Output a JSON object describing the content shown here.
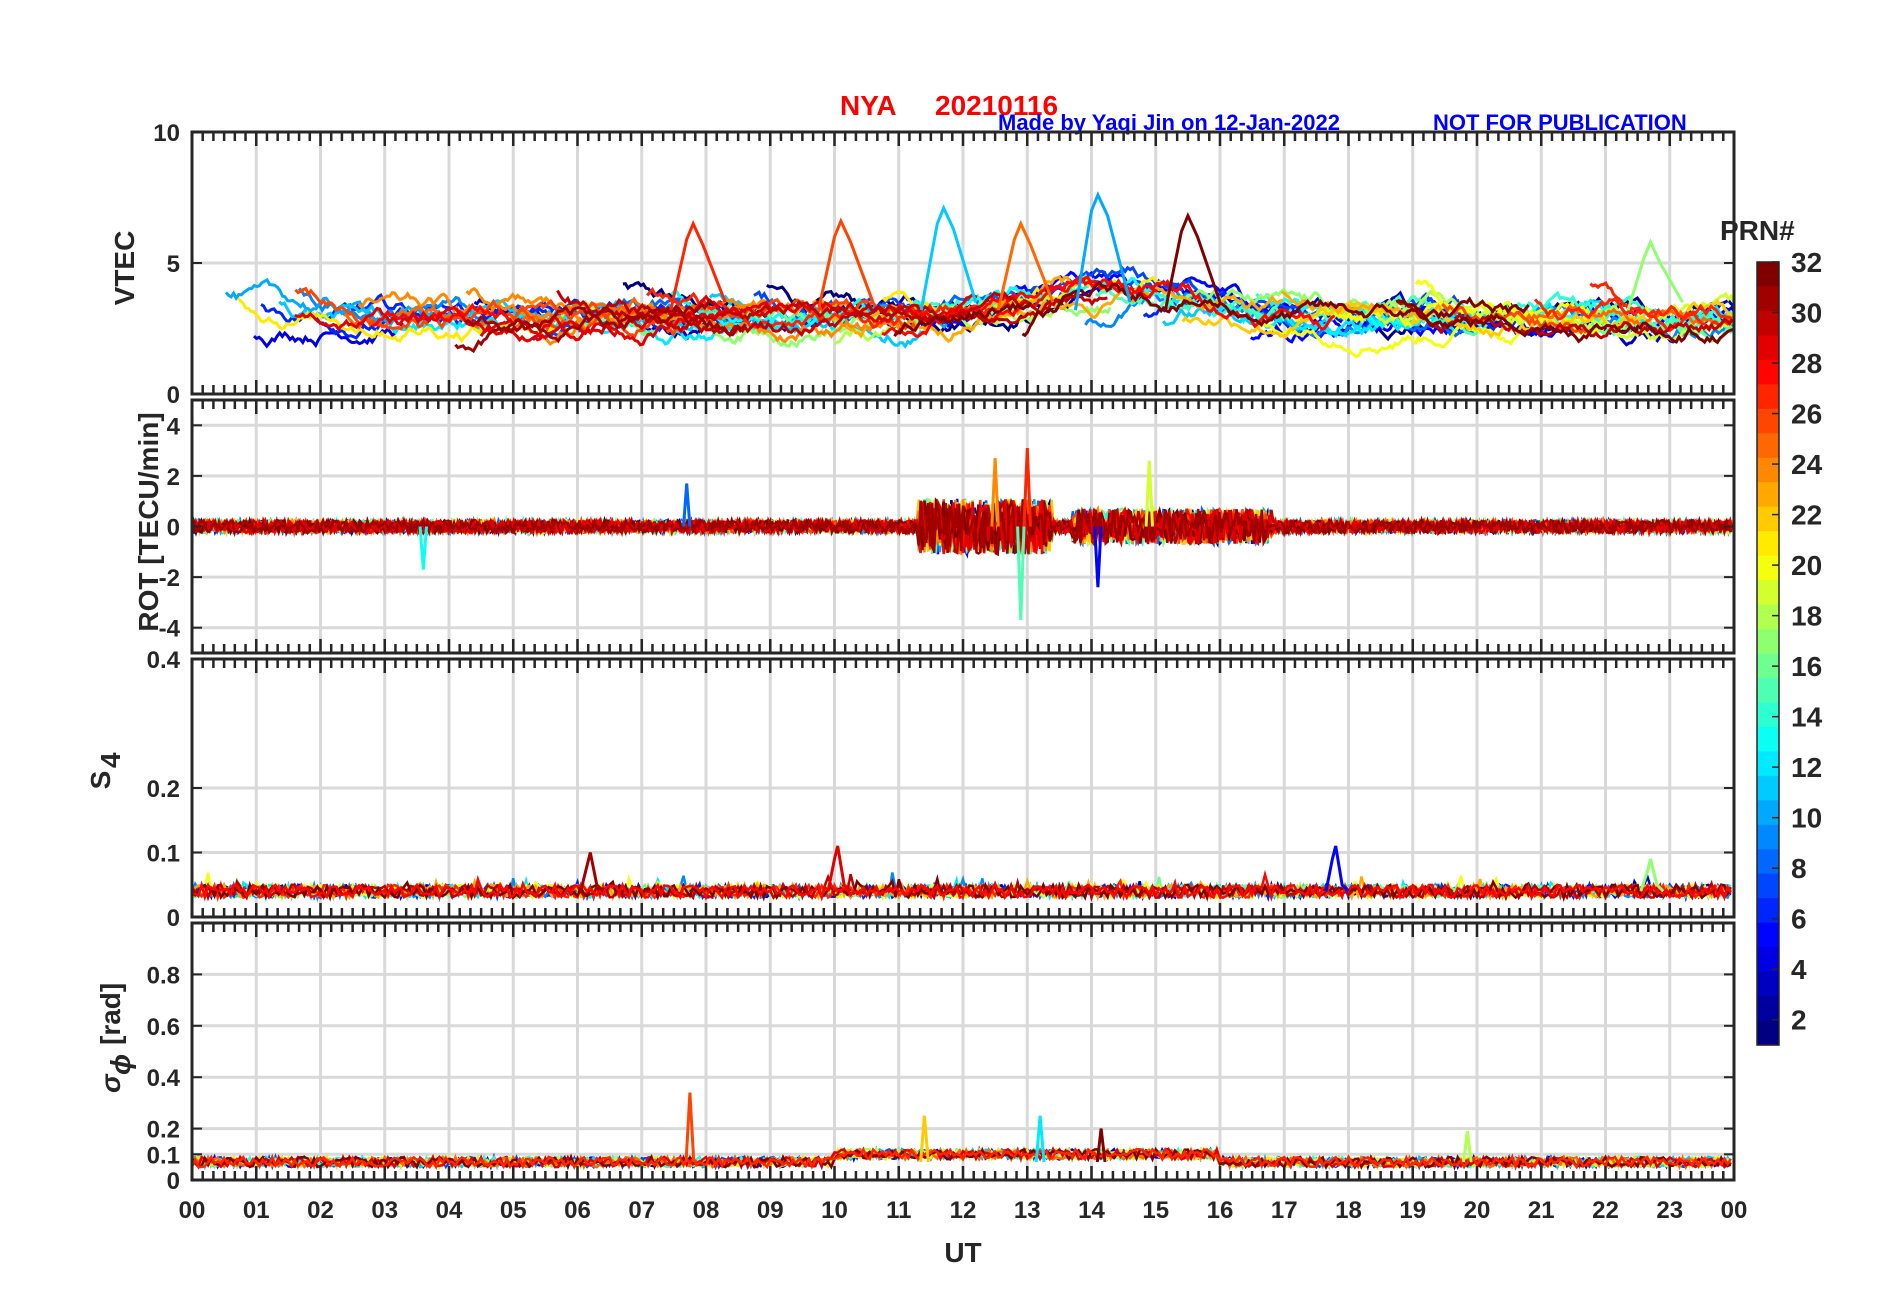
{
  "header": {
    "station": "NYA",
    "date": "20210116",
    "credit": "Made by Yaqi Jin on 12-Jan-2022",
    "notice": "NOT FOR PUBLICATION"
  },
  "colorbar": {
    "title": "PRN#",
    "ticks": [
      "2",
      "4",
      "6",
      "8",
      "10",
      "12",
      "14",
      "16",
      "18",
      "20",
      "22",
      "24",
      "26",
      "28",
      "30",
      "32"
    ],
    "range": [
      1,
      32
    ],
    "colormap": "jet"
  },
  "chart_data": [
    {
      "id": "vtec",
      "type": "line",
      "ylabel": "VTEC",
      "ylim": [
        0,
        10
      ],
      "yticks": [
        "0",
        "5",
        "10"
      ],
      "grid": true,
      "x_range_hours": [
        0,
        24
      ],
      "baseline": 2.8,
      "series_hint": "32 PRN traces, values roughly 1.5-4.5 TECU, peaks ~7 near 12-15 UT",
      "events": [
        {
          "t": 7.8,
          "v": 6.5
        },
        {
          "t": 10.1,
          "v": 6.6
        },
        {
          "t": 11.7,
          "v": 7.1
        },
        {
          "t": 12.9,
          "v": 6.5
        },
        {
          "t": 14.1,
          "v": 7.6
        },
        {
          "t": 15.5,
          "v": 6.8
        },
        {
          "t": 22.7,
          "v": 5.8
        }
      ]
    },
    {
      "id": "rot",
      "type": "line",
      "ylabel": "ROT [TECU/min]",
      "ylim": [
        -5,
        5
      ],
      "yticks": [
        "-4",
        "-2",
        "0",
        "2",
        "4"
      ],
      "grid": true,
      "x_range_hours": [
        0,
        24
      ],
      "events": [
        {
          "t": 3.6,
          "v": -1.7
        },
        {
          "t": 7.7,
          "v": 1.7
        },
        {
          "t": 12.5,
          "v": 2.7
        },
        {
          "t": 12.9,
          "v": -3.7
        },
        {
          "t": 13.0,
          "v": 3.1
        },
        {
          "t": 14.1,
          "v": -2.4
        },
        {
          "t": 14.9,
          "v": 2.6
        }
      ]
    },
    {
      "id": "s4",
      "type": "line",
      "ylabel": "S",
      "ylabel_sub": "4",
      "ylim": [
        0,
        0.4
      ],
      "yticks": [
        "0",
        "0.1",
        "0.2",
        "0.4"
      ],
      "grid": true,
      "x_range_hours": [
        0,
        24
      ],
      "baseline": 0.035,
      "events": [
        {
          "t": 6.2,
          "v": 0.1
        },
        {
          "t": 10.05,
          "v": 0.11
        },
        {
          "t": 17.8,
          "v": 0.11
        },
        {
          "t": 22.7,
          "v": 0.09
        }
      ]
    },
    {
      "id": "sigphi",
      "type": "line",
      "ylabel": "σ",
      "ylabel_sub": "ϕ",
      "ylabel_unit": "[rad]",
      "ylim": [
        0,
        1
      ],
      "yticks": [
        "0",
        "0.1",
        "0.2",
        "0.4",
        "0.6",
        "0.8"
      ],
      "grid": true,
      "x_range_hours": [
        0,
        24
      ],
      "baseline": 0.06,
      "events": [
        {
          "t": 7.75,
          "v": 0.34
        },
        {
          "t": 11.4,
          "v": 0.25
        },
        {
          "t": 13.2,
          "v": 0.25
        },
        {
          "t": 14.15,
          "v": 0.2
        },
        {
          "t": 19.85,
          "v": 0.19
        }
      ]
    }
  ],
  "xaxis": {
    "label": "UT",
    "ticks": [
      "00",
      "01",
      "02",
      "03",
      "04",
      "05",
      "06",
      "07",
      "08",
      "09",
      "10",
      "11",
      "12",
      "13",
      "14",
      "15",
      "16",
      "17",
      "18",
      "19",
      "20",
      "21",
      "22",
      "23",
      "00"
    ]
  }
}
